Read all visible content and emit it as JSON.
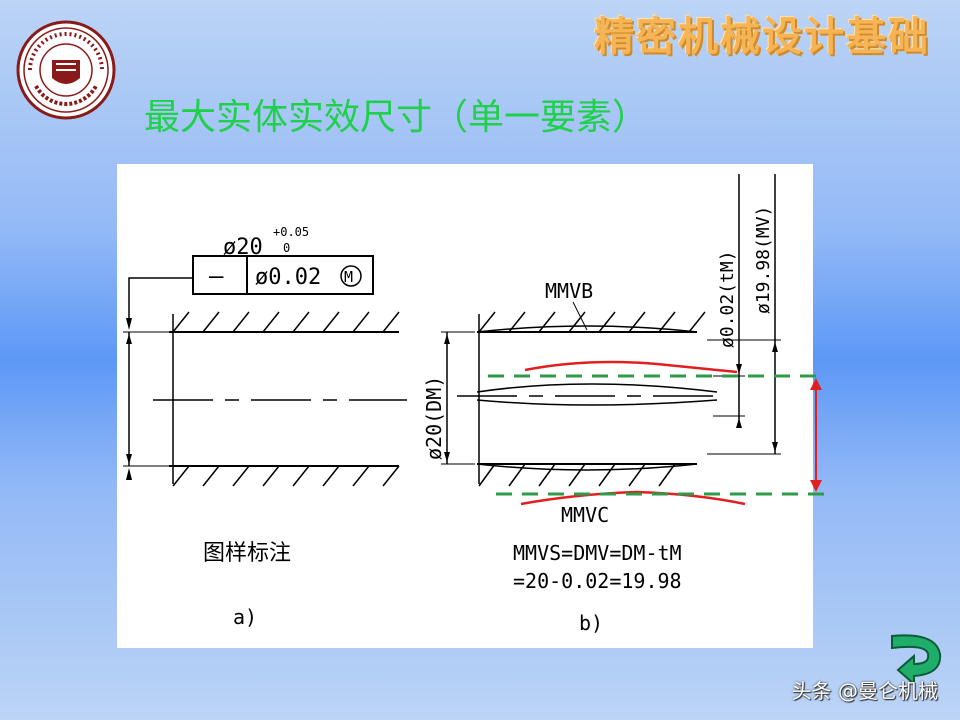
{
  "header": {
    "title": "精密机械设计基础"
  },
  "slide": {
    "title": "最大实体实效尺寸（单一要素）"
  },
  "logo": {
    "icon": "tianjin-university-seal-icon"
  },
  "figure_a": {
    "dimension": "ø20",
    "tol_upper": "+0.05",
    "tol_lower": "0",
    "frame_symbol": "—",
    "frame_value": "ø0.02",
    "frame_modifier": "M",
    "caption": "图样标注",
    "label": "a)"
  },
  "figure_b": {
    "mmvb_label": "MMVB",
    "mmvc_label": "MMVC",
    "dim_left": "ø20(DM)",
    "dim_right_inner": "ø0.02(tM)",
    "dim_right_outer": "ø19.98(MV)",
    "formula_line1": "MMVS=DMV=DM-tM",
    "formula_line2": "=20-0.02=19.98",
    "label": "b)"
  },
  "annotation_colors": {
    "red": "#e02020",
    "green": "#2e9a4a"
  },
  "nav": {
    "icon": "return-arrow-icon"
  },
  "watermark": {
    "text": "头条 @曼仑机械"
  }
}
